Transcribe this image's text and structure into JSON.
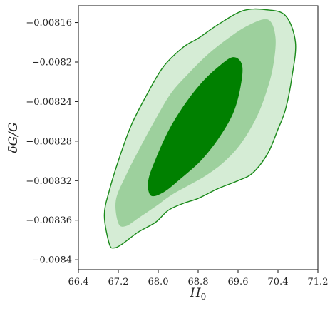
{
  "chart_data": {
    "type": "contour",
    "xlabel": "H_0",
    "ylabel": "δG/G",
    "xlim": [
      66.4,
      71.2
    ],
    "ylim": [
      -0.00841,
      -0.008143
    ],
    "x_ticks": [
      66.4,
      67.2,
      68.0,
      68.8,
      69.6,
      70.4,
      71.2
    ],
    "x_tick_labels": [
      "66.4",
      "67.2",
      "68.0",
      "68.8",
      "69.6",
      "70.4",
      "71.2"
    ],
    "y_ticks": [
      -0.0084,
      -0.00836,
      -0.00832,
      -0.00828,
      -0.00824,
      -0.0082,
      -0.00816
    ],
    "y_tick_labels": [
      "−0.0084",
      "−0.00836",
      "−0.00832",
      "−0.00828",
      "−0.00824",
      "−0.0082",
      "−0.00816"
    ],
    "grid": false,
    "colors": {
      "outer": "#d5ecd5",
      "middle": "#9dd09d",
      "inner": "#008000",
      "edge": "#1a8a1a"
    },
    "contours": [
      {
        "level": "outer",
        "points": [
          [
            67.02,
            -0.008384
          ],
          [
            66.92,
            -0.008355
          ],
          [
            67.02,
            -0.00833
          ],
          [
            67.2,
            -0.0083
          ],
          [
            67.45,
            -0.008265
          ],
          [
            67.75,
            -0.008235
          ],
          [
            68.1,
            -0.008205
          ],
          [
            68.5,
            -0.008185
          ],
          [
            68.8,
            -0.008176
          ],
          [
            69.2,
            -0.008162
          ],
          [
            69.7,
            -0.008148
          ],
          [
            70.15,
            -0.008147
          ],
          [
            70.55,
            -0.008153
          ],
          [
            70.75,
            -0.00818
          ],
          [
            70.68,
            -0.008215
          ],
          [
            70.55,
            -0.008248
          ],
          [
            70.4,
            -0.008268
          ],
          [
            70.2,
            -0.008292
          ],
          [
            69.9,
            -0.008312
          ],
          [
            69.6,
            -0.00832
          ],
          [
            69.2,
            -0.008328
          ],
          [
            68.8,
            -0.008338
          ],
          [
            68.5,
            -0.008343
          ],
          [
            68.2,
            -0.00835
          ],
          [
            67.95,
            -0.008362
          ],
          [
            67.6,
            -0.008372
          ],
          [
            67.28,
            -0.008384
          ],
          [
            67.12,
            -0.008388
          ]
        ]
      },
      {
        "level": "middle",
        "points": [
          [
            67.2,
            -0.008363
          ],
          [
            67.15,
            -0.00834
          ],
          [
            67.35,
            -0.008315
          ],
          [
            67.6,
            -0.00829
          ],
          [
            67.9,
            -0.008262
          ],
          [
            68.25,
            -0.008232
          ],
          [
            68.6,
            -0.008212
          ],
          [
            69.0,
            -0.008192
          ],
          [
            69.4,
            -0.008176
          ],
          [
            69.8,
            -0.008163
          ],
          [
            70.2,
            -0.008157
          ],
          [
            70.35,
            -0.008175
          ],
          [
            70.3,
            -0.008205
          ],
          [
            70.15,
            -0.008233
          ],
          [
            69.95,
            -0.008258
          ],
          [
            69.65,
            -0.008283
          ],
          [
            69.3,
            -0.008302
          ],
          [
            68.95,
            -0.008315
          ],
          [
            68.6,
            -0.008325
          ],
          [
            68.25,
            -0.008335
          ],
          [
            67.95,
            -0.008346
          ],
          [
            67.6,
            -0.008358
          ],
          [
            67.35,
            -0.008366
          ]
        ]
      },
      {
        "level": "inner",
        "points": [
          [
            67.85,
            -0.008335
          ],
          [
            67.8,
            -0.00832
          ],
          [
            67.95,
            -0.008298
          ],
          [
            68.2,
            -0.00827
          ],
          [
            68.5,
            -0.008245
          ],
          [
            68.85,
            -0.008222
          ],
          [
            69.2,
            -0.008205
          ],
          [
            69.5,
            -0.008195
          ],
          [
            69.68,
            -0.008203
          ],
          [
            69.65,
            -0.008225
          ],
          [
            69.5,
            -0.008252
          ],
          [
            69.2,
            -0.008278
          ],
          [
            68.85,
            -0.0083
          ],
          [
            68.45,
            -0.008318
          ],
          [
            68.1,
            -0.008332
          ]
        ]
      }
    ]
  }
}
